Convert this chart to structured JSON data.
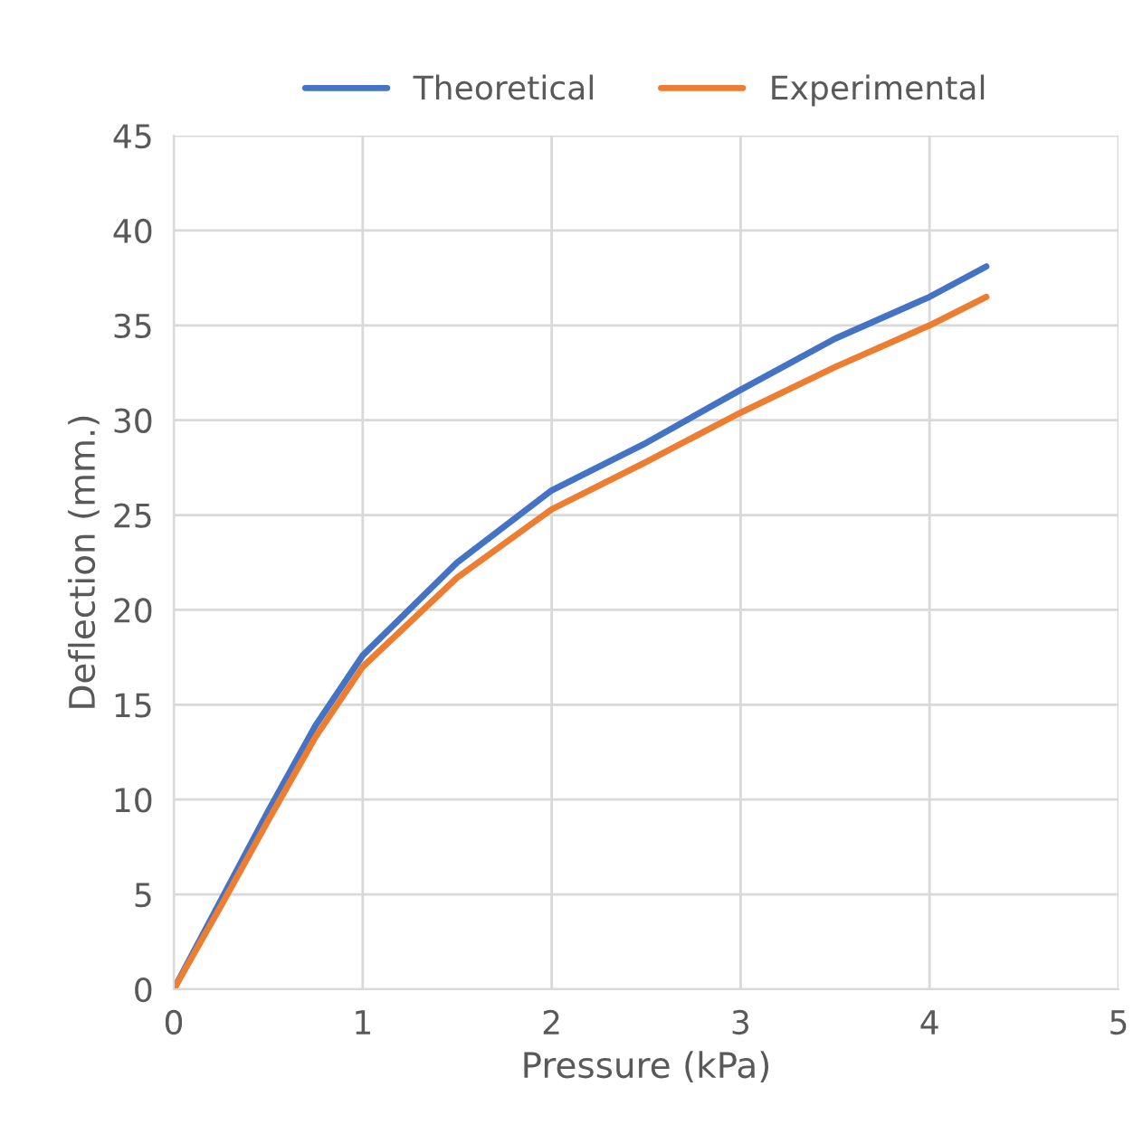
{
  "chart_data": {
    "type": "line",
    "xlabel": "Pressure (kPa)",
    "ylabel": "Deflection (mm.)",
    "xlim": [
      0,
      5
    ],
    "xticks": [
      0,
      1,
      2,
      3,
      4,
      5
    ],
    "ylim": [
      0,
      45
    ],
    "yticks": [
      0,
      5,
      10,
      15,
      20,
      25,
      30,
      35,
      40,
      45
    ],
    "grid": true,
    "legend": "top",
    "marker": "none",
    "line_style": "solid",
    "series": [
      {
        "name": "Theoretical",
        "color": "#4472c4",
        "x": [
          0,
          0.25,
          0.5,
          0.75,
          1,
          1.5,
          2,
          2.5,
          3,
          3.5,
          4,
          4.3
        ],
        "values": [
          0,
          4.7,
          9.4,
          13.9,
          17.6,
          22.5,
          26.3,
          28.8,
          31.6,
          34.3,
          36.5,
          38.1
        ]
      },
      {
        "name": "Experimental",
        "color": "#ed7d31",
        "x": [
          0,
          0.25,
          0.5,
          0.75,
          1,
          1.5,
          2,
          2.5,
          3,
          3.5,
          4,
          4.3
        ],
        "values": [
          0,
          4.4,
          8.9,
          13.3,
          17.0,
          21.7,
          25.3,
          27.8,
          30.4,
          32.8,
          35.0,
          36.5
        ]
      }
    ]
  }
}
